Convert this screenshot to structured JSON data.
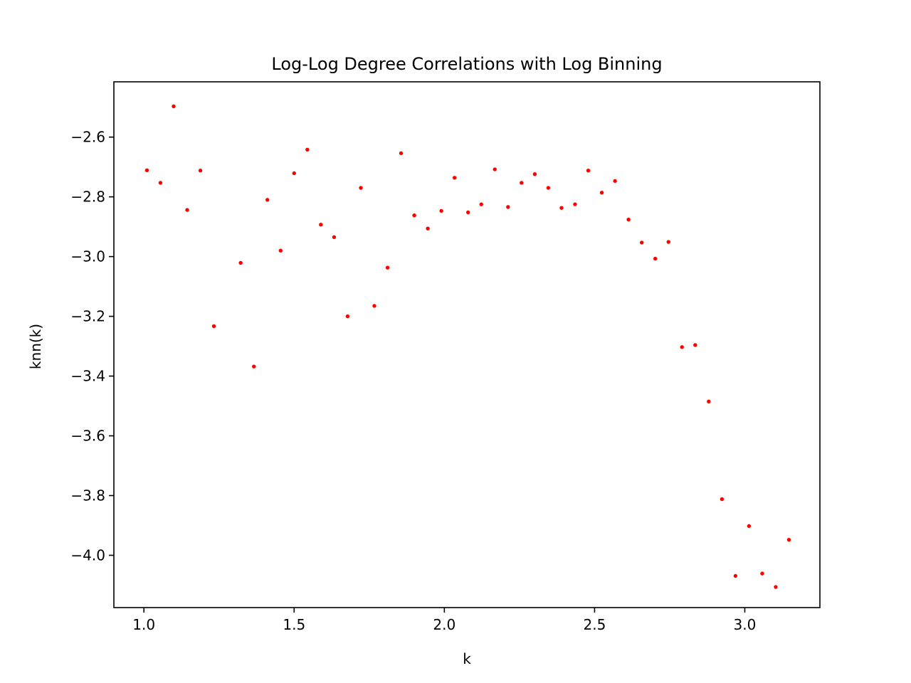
{
  "chart_data": {
    "type": "scatter",
    "title": "Log-Log Degree Correlations with Log Binning",
    "xlabel": "k",
    "ylabel": "knn(k)",
    "xlim": [
      0.9,
      3.25
    ],
    "ylim": [
      -4.175,
      -2.415
    ],
    "x_ticks": [
      1.0,
      1.5,
      2.0,
      2.5,
      3.0
    ],
    "x_tick_labels": [
      "1.0",
      "1.5",
      "2.0",
      "2.5",
      "3.0"
    ],
    "y_ticks": [
      -2.6,
      -2.8,
      -3.0,
      -3.2,
      -3.4,
      -3.6,
      -3.8,
      -4.0
    ],
    "y_tick_labels": [
      "−2.6",
      "−2.8",
      "−3.0",
      "−3.2",
      "−3.4",
      "−3.6",
      "−3.8",
      "−4.0"
    ],
    "grid": false,
    "legend": "none",
    "marker_color": "#ff0000",
    "x": [
      1.01,
      1.055,
      1.099,
      1.144,
      1.188,
      1.233,
      1.322,
      1.366,
      1.411,
      1.455,
      1.5,
      1.544,
      1.589,
      1.633,
      1.678,
      1.722,
      1.767,
      1.811,
      1.856,
      1.9,
      1.945,
      1.99,
      2.034,
      2.079,
      2.123,
      2.168,
      2.212,
      2.257,
      2.301,
      2.346,
      2.39,
      2.435,
      2.479,
      2.524,
      2.568,
      2.613,
      2.657,
      2.702,
      2.746,
      2.791,
      2.835,
      2.88,
      2.924,
      2.969,
      3.014,
      3.058,
      3.103,
      3.147
    ],
    "y": [
      -2.711,
      -2.753,
      -2.497,
      -2.844,
      -2.712,
      -3.233,
      -3.021,
      -3.368,
      -2.81,
      -2.98,
      -2.721,
      -2.642,
      -2.893,
      -2.935,
      -3.2,
      -2.77,
      -3.165,
      -3.037,
      -2.654,
      -2.862,
      -2.906,
      -2.847,
      -2.736,
      -2.852,
      -2.825,
      -2.708,
      -2.834,
      -2.753,
      -2.724,
      -2.77,
      -2.837,
      -2.825,
      -2.712,
      -2.786,
      -2.747,
      -2.876,
      -2.953,
      -3.007,
      -2.951,
      -3.303,
      -3.296,
      -3.485,
      -3.812,
      -4.069,
      -3.902,
      -4.061,
      -4.106,
      -3.948
    ]
  }
}
